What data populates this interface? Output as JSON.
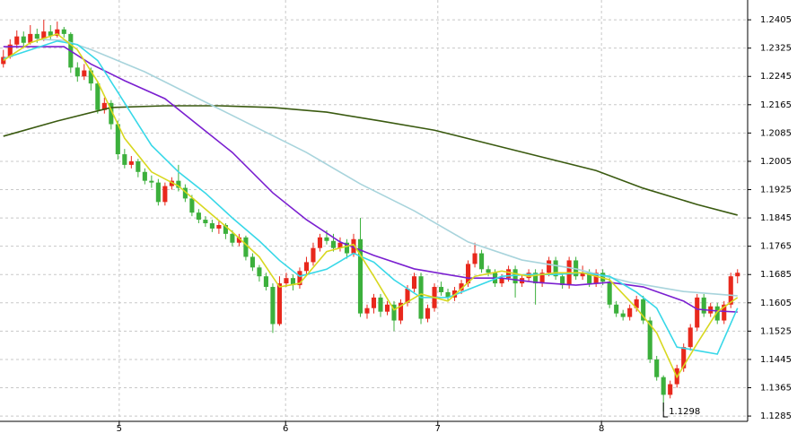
{
  "chart_data": {
    "type": "candlestick",
    "up_color": "#e8281c",
    "down_color": "#3cb03c",
    "xlim": [
      -0.5,
      110.5
    ],
    "xticks": [
      {
        "value": 17.2,
        "label": "5"
      },
      {
        "value": 41.9,
        "label": "6"
      },
      {
        "value": 64.5,
        "label": "7"
      },
      {
        "value": 88.8,
        "label": "8"
      }
    ],
    "ylim": [
      1.127,
      1.2461
    ],
    "yticks": [
      1.2405,
      1.2325,
      1.2245,
      1.2165,
      1.2085,
      1.2005,
      1.1925,
      1.1845,
      1.1765,
      1.1685,
      1.1605,
      1.1525,
      1.1445,
      1.1365,
      1.1285
    ],
    "grid": true,
    "candles": [
      [
        1.228,
        1.232,
        1.227,
        1.23
      ],
      [
        1.23,
        1.235,
        1.2295,
        1.2335
      ],
      [
        1.2335,
        1.2375,
        1.2325,
        1.2358
      ],
      [
        1.2358,
        1.2372,
        1.233,
        1.234
      ],
      [
        1.234,
        1.239,
        1.2335,
        1.2365
      ],
      [
        1.2365,
        1.238,
        1.234,
        1.2352
      ],
      [
        1.2352,
        1.2405,
        1.2345,
        1.2372
      ],
      [
        1.2372,
        1.239,
        1.235,
        1.236
      ],
      [
        1.236,
        1.24,
        1.2355,
        1.2378
      ],
      [
        1.2378,
        1.2385,
        1.2355,
        1.2365
      ],
      [
        1.2365,
        1.237,
        1.2255,
        1.227
      ],
      [
        1.227,
        1.2285,
        1.223,
        1.2245
      ],
      [
        1.2245,
        1.228,
        1.2235,
        1.2262
      ],
      [
        1.2262,
        1.227,
        1.2205,
        1.2225
      ],
      [
        1.2225,
        1.2232,
        1.214,
        1.215
      ],
      [
        1.215,
        1.2185,
        1.214,
        1.217
      ],
      [
        1.217,
        1.2178,
        1.2095,
        1.211
      ],
      [
        1.211,
        1.212,
        1.201,
        1.2025
      ],
      [
        1.2025,
        1.204,
        1.1985,
        1.1995
      ],
      [
        1.1995,
        1.202,
        1.1985,
        1.2005
      ],
      [
        1.2005,
        1.2012,
        1.196,
        1.1975
      ],
      [
        1.1975,
        1.1985,
        1.194,
        1.195
      ],
      [
        1.195,
        1.1965,
        1.193,
        1.1945
      ],
      [
        1.1945,
        1.1955,
        1.188,
        1.189
      ],
      [
        1.189,
        1.1945,
        1.188,
        1.1935
      ],
      [
        1.1935,
        1.196,
        1.1925,
        1.195
      ],
      [
        1.195,
        1.1995,
        1.192,
        1.193
      ],
      [
        1.193,
        1.194,
        1.189,
        1.19
      ],
      [
        1.19,
        1.191,
        1.185,
        1.186
      ],
      [
        1.186,
        1.187,
        1.183,
        1.184
      ],
      [
        1.184,
        1.185,
        1.182,
        1.183
      ],
      [
        1.183,
        1.184,
        1.1805,
        1.1815
      ],
      [
        1.1815,
        1.1835,
        1.18,
        1.1825
      ],
      [
        1.1825,
        1.183,
        1.1785,
        1.18
      ],
      [
        1.18,
        1.181,
        1.1765,
        1.1775
      ],
      [
        1.1775,
        1.18,
        1.1765,
        1.179
      ],
      [
        1.179,
        1.1795,
        1.1725,
        1.1735
      ],
      [
        1.1735,
        1.1745,
        1.1695,
        1.1705
      ],
      [
        1.1705,
        1.1712,
        1.1665,
        1.168
      ],
      [
        1.168,
        1.169,
        1.164,
        1.165
      ],
      [
        1.165,
        1.166,
        1.152,
        1.1545
      ],
      [
        1.1545,
        1.168,
        1.154,
        1.166
      ],
      [
        1.166,
        1.169,
        1.165,
        1.1675
      ],
      [
        1.1675,
        1.1685,
        1.164,
        1.1655
      ],
      [
        1.1655,
        1.1705,
        1.1645,
        1.1695
      ],
      [
        1.1695,
        1.1735,
        1.1685,
        1.172
      ],
      [
        1.172,
        1.1775,
        1.171,
        1.176
      ],
      [
        1.176,
        1.18,
        1.175,
        1.179
      ],
      [
        1.179,
        1.181,
        1.177,
        1.178
      ],
      [
        1.178,
        1.18,
        1.175,
        1.176
      ],
      [
        1.176,
        1.179,
        1.175,
        1.1775
      ],
      [
        1.1775,
        1.1785,
        1.173,
        1.1745
      ],
      [
        1.1745,
        1.18,
        1.1735,
        1.1785
      ],
      [
        1.1785,
        1.1845,
        1.1565,
        1.1575
      ],
      [
        1.1575,
        1.16,
        1.156,
        1.159
      ],
      [
        1.159,
        1.163,
        1.1575,
        1.162
      ],
      [
        1.162,
        1.163,
        1.1565,
        1.158
      ],
      [
        1.158,
        1.161,
        1.157,
        1.16
      ],
      [
        1.16,
        1.161,
        1.1525,
        1.1555
      ],
      [
        1.1555,
        1.1615,
        1.1545,
        1.1605
      ],
      [
        1.1605,
        1.1655,
        1.1595,
        1.1645
      ],
      [
        1.1645,
        1.169,
        1.1635,
        1.168
      ],
      [
        1.168,
        1.169,
        1.1545,
        1.156
      ],
      [
        1.156,
        1.16,
        1.155,
        1.159
      ],
      [
        1.159,
        1.166,
        1.158,
        1.165
      ],
      [
        1.165,
        1.1665,
        1.1625,
        1.1635
      ],
      [
        1.1635,
        1.1645,
        1.161,
        1.162
      ],
      [
        1.162,
        1.165,
        1.161,
        1.164
      ],
      [
        1.164,
        1.167,
        1.163,
        1.166
      ],
      [
        1.166,
        1.1725,
        1.165,
        1.1715
      ],
      [
        1.1715,
        1.1775,
        1.1705,
        1.1745
      ],
      [
        1.1745,
        1.1755,
        1.169,
        1.17
      ],
      [
        1.17,
        1.171,
        1.168,
        1.169
      ],
      [
        1.169,
        1.17,
        1.165,
        1.166
      ],
      [
        1.166,
        1.1685,
        1.165,
        1.1675
      ],
      [
        1.1675,
        1.171,
        1.1665,
        1.17
      ],
      [
        1.17,
        1.171,
        1.162,
        1.166
      ],
      [
        1.166,
        1.1685,
        1.165,
        1.1675
      ],
      [
        1.1675,
        1.17,
        1.1665,
        1.169
      ],
      [
        1.169,
        1.17,
        1.16,
        1.166
      ],
      [
        1.166,
        1.17,
        1.165,
        1.169
      ],
      [
        1.169,
        1.1735,
        1.168,
        1.1725
      ],
      [
        1.1725,
        1.1735,
        1.167,
        1.168
      ],
      [
        1.168,
        1.169,
        1.1645,
        1.1655
      ],
      [
        1.1655,
        1.1735,
        1.1645,
        1.1725
      ],
      [
        1.1725,
        1.1735,
        1.167,
        1.168
      ],
      [
        1.168,
        1.171,
        1.167,
        1.169
      ],
      [
        1.169,
        1.17,
        1.165,
        1.166
      ],
      [
        1.166,
        1.17,
        1.165,
        1.169
      ],
      [
        1.169,
        1.17,
        1.1655,
        1.1665
      ],
      [
        1.1665,
        1.1675,
        1.159,
        1.16
      ],
      [
        1.16,
        1.161,
        1.1565,
        1.1575
      ],
      [
        1.1575,
        1.1585,
        1.1555,
        1.1565
      ],
      [
        1.1565,
        1.16,
        1.1555,
        1.159
      ],
      [
        1.159,
        1.1625,
        1.158,
        1.1615
      ],
      [
        1.1615,
        1.1625,
        1.1545,
        1.1555
      ],
      [
        1.1555,
        1.1565,
        1.1435,
        1.1445
      ],
      [
        1.1445,
        1.1455,
        1.1385,
        1.1395
      ],
      [
        1.1395,
        1.14,
        1.1298,
        1.1345
      ],
      [
        1.1345,
        1.1385,
        1.1335,
        1.1375
      ],
      [
        1.1375,
        1.143,
        1.1365,
        1.142
      ],
      [
        1.142,
        1.149,
        1.141,
        1.148
      ],
      [
        1.148,
        1.1545,
        1.147,
        1.1535
      ],
      [
        1.1535,
        1.163,
        1.1525,
        1.162
      ],
      [
        1.162,
        1.163,
        1.1565,
        1.1575
      ],
      [
        1.1575,
        1.1605,
        1.1565,
        1.1595
      ],
      [
        1.1595,
        1.1605,
        1.1545,
        1.1555
      ],
      [
        1.1555,
        1.161,
        1.1545,
        1.16
      ],
      [
        1.16,
        1.169,
        1.159,
        1.168
      ],
      [
        1.168,
        1.17,
        1.166,
        1.169
      ]
    ],
    "lines": [
      {
        "color": "#3a5a10",
        "x": [
          0,
          8,
          16,
          24,
          32,
          40,
          48,
          56,
          64,
          72,
          80,
          88,
          95,
          103,
          109
        ],
        "values": [
          1.2076,
          1.2119,
          1.2157,
          1.2162,
          1.2162,
          1.2157,
          1.2144,
          1.2119,
          1.2093,
          1.2055,
          1.2017,
          1.1979,
          1.1929,
          1.1883,
          1.1853
        ]
      },
      {
        "color": "#a8d4dc",
        "x": [
          5,
          9,
          13,
          21,
          29,
          37,
          45,
          53,
          61,
          69,
          77,
          85,
          93,
          101,
          109
        ],
        "values": [
          1.235,
          1.2347,
          1.2321,
          1.2258,
          1.2182,
          1.2106,
          1.203,
          1.1941,
          1.1865,
          1.1777,
          1.1726,
          1.1701,
          1.1663,
          1.1637,
          1.1625
        ]
      },
      {
        "color": "#7a1fd0",
        "x": [
          0,
          9,
          13,
          18,
          24,
          29,
          34,
          40,
          45,
          50,
          55,
          61,
          69,
          74,
          79,
          85,
          90,
          95,
          101,
          103,
          106,
          109
        ],
        "values": [
          1.2329,
          1.2329,
          1.228,
          1.2233,
          1.2182,
          1.2106,
          1.203,
          1.1916,
          1.184,
          1.1777,
          1.1739,
          1.1701,
          1.1675,
          1.1675,
          1.1663,
          1.1655,
          1.1663,
          1.165,
          1.161,
          1.1587,
          1.1582,
          1.1579
        ]
      },
      {
        "color": "#38d8e8",
        "x": [
          0,
          4,
          8,
          11,
          14,
          18,
          22,
          26,
          30,
          34,
          38,
          41,
          44,
          48,
          52,
          55,
          58,
          62,
          66,
          70,
          74,
          78,
          82,
          86,
          90,
          94,
          97,
          100,
          103,
          106,
          109
        ],
        "values": [
          1.2295,
          1.232,
          1.2345,
          1.2335,
          1.229,
          1.217,
          1.205,
          1.1975,
          1.1915,
          1.1845,
          1.178,
          1.1725,
          1.168,
          1.17,
          1.1745,
          1.172,
          1.167,
          1.162,
          1.162,
          1.165,
          1.168,
          1.1685,
          1.1685,
          1.169,
          1.168,
          1.1635,
          1.159,
          1.148,
          1.147,
          1.146,
          1.159
        ]
      },
      {
        "color": "#d8d820",
        "x": [
          0,
          4,
          8,
          11,
          14,
          18,
          22,
          26,
          30,
          34,
          38,
          41,
          44,
          48,
          52,
          55,
          58,
          62,
          66,
          70,
          74,
          78,
          82,
          86,
          90,
          94,
          97,
          100,
          103,
          106,
          109
        ],
        "values": [
          1.229,
          1.234,
          1.2365,
          1.232,
          1.223,
          1.207,
          1.1975,
          1.1935,
          1.187,
          1.1805,
          1.1735,
          1.165,
          1.166,
          1.175,
          1.177,
          1.168,
          1.1585,
          1.163,
          1.161,
          1.168,
          1.1695,
          1.168,
          1.169,
          1.169,
          1.167,
          1.159,
          1.152,
          1.1395,
          1.149,
          1.158,
          1.162
        ]
      }
    ],
    "low_label": {
      "x": 98,
      "value": 1.1298
    }
  }
}
